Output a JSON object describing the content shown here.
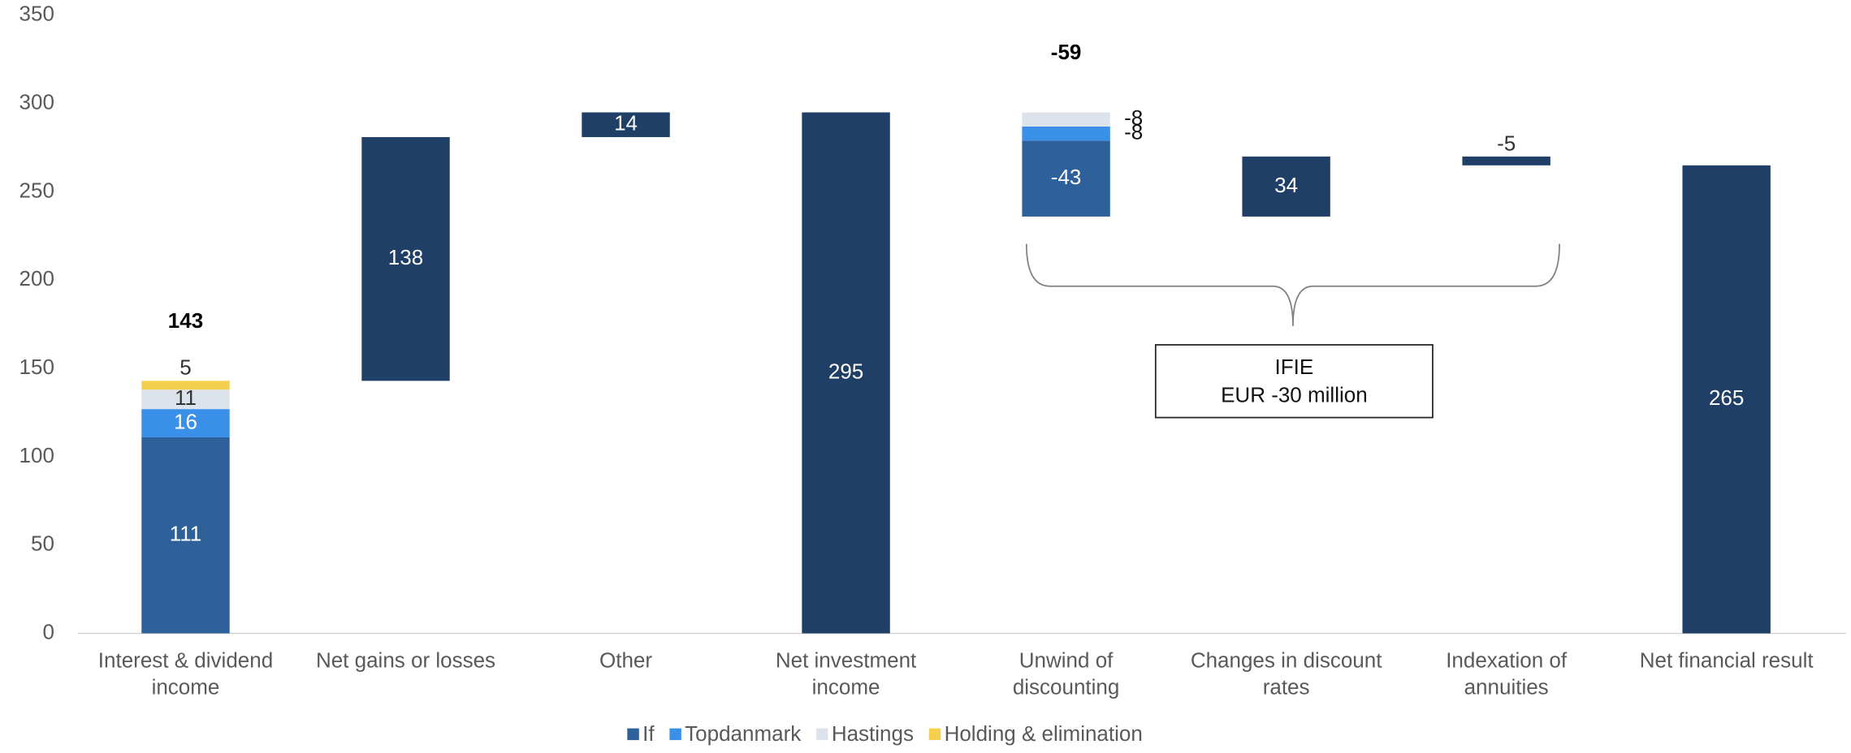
{
  "chart_data": {
    "type": "waterfall",
    "categories": [
      "Interest & dividend income",
      "Net gains or losses",
      "Other",
      "Net investment income",
      "Unwind of discounting",
      "Changes in discount rates",
      "Indexation of annuities",
      "Net financial result"
    ],
    "measure": [
      "relative",
      "relative",
      "relative",
      "total",
      "relative",
      "relative",
      "relative",
      "total"
    ],
    "series": [
      {
        "name": "If",
        "color": "#2e6099",
        "values": [
          111,
          null,
          null,
          null,
          -43,
          null,
          null,
          null
        ]
      },
      {
        "name": "Topdanmark",
        "color": "#3a8fe8",
        "values": [
          16,
          null,
          null,
          null,
          -8,
          null,
          null,
          null
        ]
      },
      {
        "name": "Hastings",
        "color": "#dce3ec",
        "values": [
          11,
          null,
          null,
          null,
          -8,
          null,
          null,
          null
        ]
      },
      {
        "name": "Holding & elimination",
        "color": "#f5cf4e",
        "values": [
          5,
          null,
          null,
          null,
          null,
          null,
          null,
          null
        ]
      }
    ],
    "other_values": [
      null,
      138,
      14,
      295,
      null,
      34,
      -5,
      265
    ],
    "other_color": "#1f3f66",
    "stack_totals": [
      143,
      null,
      null,
      null,
      -59,
      null,
      null,
      null
    ],
    "annotation": [
      "IFIE",
      "EUR -30 million"
    ],
    "ylim": [
      0,
      350
    ],
    "yticks": [
      0,
      50,
      100,
      150,
      200,
      250,
      300,
      350
    ],
    "grid": false,
    "legend": "bottom"
  }
}
